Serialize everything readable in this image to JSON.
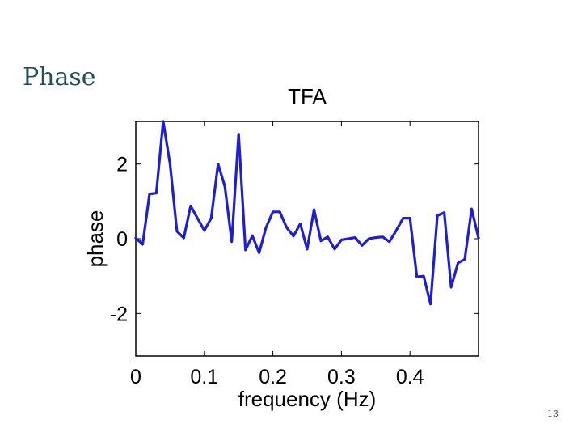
{
  "slide": {
    "title": "Phase",
    "page_number": "13"
  },
  "colors": {
    "line": "#1f1fd0",
    "title": "#1f4e5a"
  },
  "chart_data": {
    "type": "line",
    "title": "TFA",
    "xlabel": "frequency (Hz)",
    "ylabel": "phase",
    "xlim": [
      0,
      0.5
    ],
    "ylim": [
      -3.14,
      3.14
    ],
    "xticks": [
      0,
      0.1,
      0.2,
      0.3,
      0.4
    ],
    "xtick_labels": [
      "0",
      "0.1",
      "0.2",
      "0.3",
      "0.4"
    ],
    "yticks": [
      -2,
      0,
      2
    ],
    "ytick_labels": [
      "-2",
      "0",
      "2"
    ],
    "grid": false,
    "series": [
      {
        "x": [
          0,
          0.01,
          0.02,
          0.03,
          0.04,
          0.05,
          0.06,
          0.07,
          0.08,
          0.09,
          0.1,
          0.11,
          0.12,
          0.13,
          0.14,
          0.15,
          0.16,
          0.17,
          0.18,
          0.19,
          0.2,
          0.21,
          0.22,
          0.23,
          0.24,
          0.25,
          0.26,
          0.27,
          0.28,
          0.29,
          0.3,
          0.31,
          0.32,
          0.33,
          0.34,
          0.35,
          0.36,
          0.37,
          0.38,
          0.39,
          0.4,
          0.41,
          0.42,
          0.43,
          0.44,
          0.45,
          0.46,
          0.47,
          0.48,
          0.49,
          0.5
        ],
        "values": [
          0.02,
          -0.15,
          1.2,
          1.22,
          3.14,
          2.0,
          0.2,
          0.02,
          0.88,
          0.55,
          0.22,
          0.55,
          2.0,
          1.4,
          -0.08,
          2.8,
          -0.3,
          0.08,
          -0.38,
          0.3,
          0.72,
          0.72,
          0.3,
          0.07,
          0.4,
          -0.28,
          0.78,
          -0.06,
          0.05,
          -0.28,
          -0.03,
          0.0,
          0.03,
          -0.18,
          0.0,
          0.03,
          0.05,
          -0.08,
          0.22,
          0.55,
          0.55,
          -1.02,
          -1.0,
          -1.75,
          0.62,
          0.7,
          -1.3,
          -0.65,
          -0.55,
          0.8,
          0.02
        ]
      }
    ]
  }
}
